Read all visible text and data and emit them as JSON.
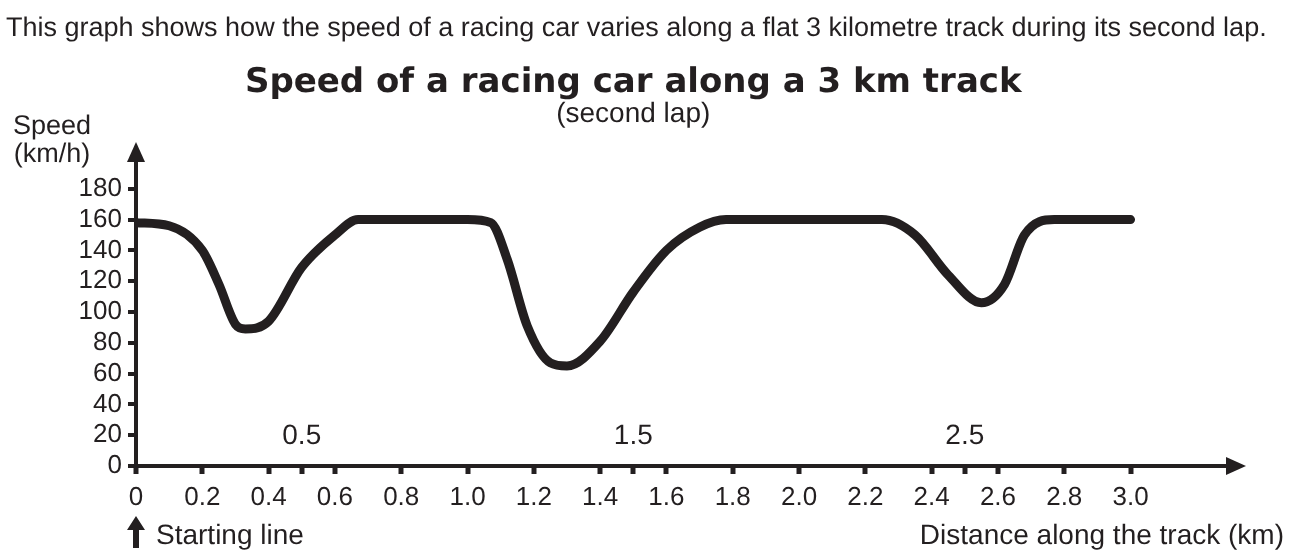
{
  "chart_data": {
    "type": "line",
    "title": "Speed of a racing car along a 3 km track",
    "subtitle": "(second lap)",
    "xlabel": "Distance along the track (km)",
    "ylabel": "Speed (km/h)",
    "x": [
      0,
      0.1,
      0.2,
      0.25,
      0.3,
      0.33,
      0.4,
      0.5,
      0.6,
      0.67,
      1.0,
      1.07,
      1.12,
      1.18,
      1.25,
      1.3,
      1.4,
      1.5,
      1.6,
      1.7,
      1.78,
      2.25,
      2.35,
      2.45,
      2.55,
      2.62,
      2.68,
      2.77,
      3.0
    ],
    "series": [
      {
        "color": "#231f20",
        "values": [
          158,
          156,
          140,
          118,
          92,
          89,
          94,
          129,
          150,
          160,
          160,
          158,
          134,
          91,
          67,
          65,
          81,
          113,
          140,
          155,
          160,
          160,
          150,
          124,
          106,
          118,
          150,
          160,
          160
        ]
      }
    ],
    "xlim": [
      0,
      3.3
    ],
    "ylim": [
      0,
      200
    ],
    "xticks": [
      0,
      {
        "value": 0.2,
        "label": "0.2"
      },
      {
        "value": 0.4,
        "label": "0.4"
      },
      {
        "value": 0.5,
        "label": null
      },
      {
        "value": 0.6,
        "label": "0.6"
      },
      {
        "value": 0.8,
        "label": "0.8"
      },
      {
        "value": 1,
        "label": "1.0"
      },
      {
        "value": 1.2,
        "label": "1.2"
      },
      {
        "value": 1.4,
        "label": "1.4"
      },
      {
        "value": 1.5,
        "label": null
      },
      {
        "value": 1.6,
        "label": "1.6"
      },
      {
        "value": 1.8,
        "label": "1.8"
      },
      {
        "value": 2,
        "label": "2.0"
      },
      {
        "value": 2.2,
        "label": "2.2"
      },
      {
        "value": 2.4,
        "label": "2.4"
      },
      {
        "value": 2.5,
        "label": null
      },
      {
        "value": 2.6,
        "label": "2.6"
      },
      {
        "value": 2.8,
        "label": "2.8"
      },
      {
        "value": 3,
        "label": "3.0"
      }
    ],
    "yticks": [
      0,
      20,
      40,
      60,
      80,
      100,
      120,
      140,
      160,
      180
    ],
    "annotations": [
      "This graph shows how the speed of a racing car varies along a flat 3 kilometre track during its second lap.",
      "0.5",
      "1.5",
      "2.5",
      "Starting line"
    ],
    "grid": false,
    "legend": false,
    "marker": "none",
    "line_style": "solid"
  }
}
